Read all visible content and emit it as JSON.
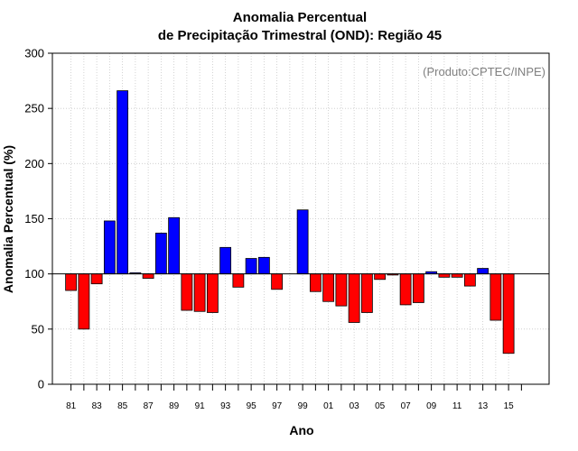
{
  "chart_data": {
    "type": "bar",
    "title_line1": "Anomalia Percentual",
    "title_line2": "de Precipitação Trimestral (OND): Região 45",
    "xlabel": "Ano",
    "ylabel": "Anomalia Percentual (%)",
    "annotation": "(Produto:CPTEC/INPE)",
    "baseline": 100,
    "ylim": [
      0,
      300
    ],
    "yticks": [
      0,
      50,
      100,
      150,
      200,
      250,
      300
    ],
    "categories": [
      "81",
      "82",
      "83",
      "84",
      "85",
      "86",
      "87",
      "88",
      "89",
      "90",
      "91",
      "92",
      "93",
      "94",
      "95",
      "96",
      "97",
      "98",
      "99",
      "00",
      "01",
      "02",
      "03",
      "04",
      "05",
      "06",
      "07",
      "08",
      "09",
      "10",
      "11",
      "12",
      "13",
      "14",
      "15"
    ],
    "xtick_labels": [
      "81",
      "83",
      "85",
      "87",
      "89",
      "91",
      "93",
      "95",
      "97",
      "99",
      "01",
      "03",
      "05",
      "07",
      "09",
      "11",
      "13",
      "15"
    ],
    "values": [
      85,
      50,
      91,
      148,
      266,
      101,
      96,
      137,
      151,
      67,
      66,
      65,
      124,
      88,
      114,
      115,
      86,
      100,
      158,
      84,
      75,
      71,
      56,
      65,
      95,
      99,
      72,
      74,
      102,
      97,
      97,
      89,
      105,
      58,
      28
    ],
    "colors": {
      "above": "#0000ff",
      "below": "#ff0000",
      "grid": "#c8c8c8"
    },
    "grid": true
  }
}
